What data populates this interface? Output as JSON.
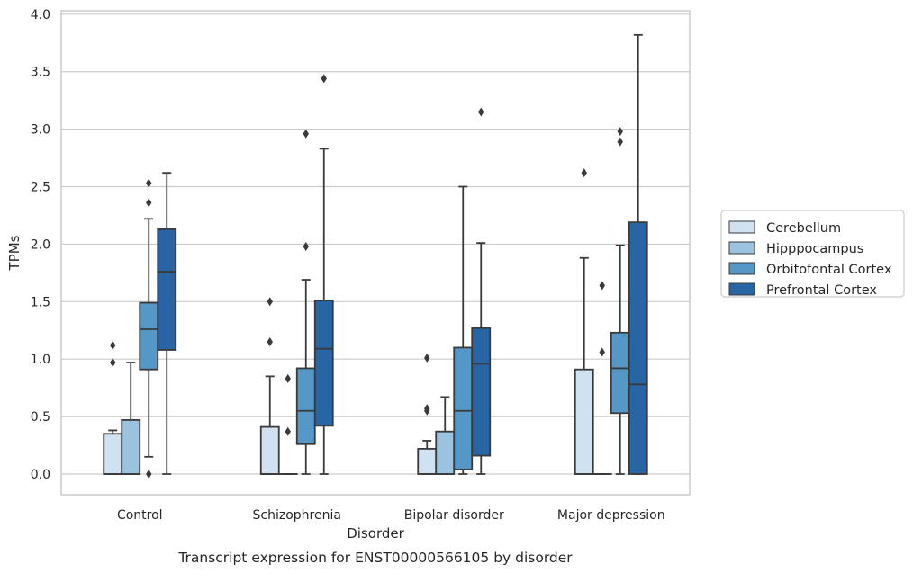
{
  "chart_data": {
    "type": "box",
    "caption": "Transcript expression for ENST00000566105 by disorder",
    "xlabel": "Disorder",
    "ylabel": "TPMs",
    "ylim": [
      -0.18,
      4.03
    ],
    "yticks": [
      "0.0",
      "0.5",
      "1.0",
      "1.5",
      "2.0",
      "2.5",
      "3.0",
      "3.5",
      "4.0"
    ],
    "grid": true,
    "legend_position": "right",
    "categories": [
      "Control",
      "Schizophrenia",
      "Bipolar disorder",
      "Major depression"
    ],
    "series": [
      {
        "name": "Cerebellum",
        "color": "#d0e1f2",
        "boxes": [
          {
            "whislo": 0.0,
            "q1": 0.0,
            "med": 0.0,
            "q3": 0.35,
            "whishi": 0.38,
            "fliers": [
              0.97,
              1.12
            ]
          },
          {
            "whislo": 0.0,
            "q1": 0.0,
            "med": 0.0,
            "q3": 0.41,
            "whishi": 0.85,
            "fliers": [
              1.15,
              1.5
            ]
          },
          {
            "whislo": 0.0,
            "q1": 0.0,
            "med": 0.0,
            "q3": 0.22,
            "whishi": 0.29,
            "fliers": [
              0.55,
              0.57,
              1.01
            ]
          },
          {
            "whislo": 0.0,
            "q1": 0.0,
            "med": 0.0,
            "q3": 0.91,
            "whishi": 1.88,
            "fliers": [
              2.62
            ]
          }
        ]
      },
      {
        "name": "Hipppocampus",
        "color": "#9bc3df",
        "boxes": [
          {
            "whislo": 0.0,
            "q1": 0.0,
            "med": 0.0,
            "q3": 0.47,
            "whishi": 0.97,
            "fliers": []
          },
          {
            "whislo": 0.0,
            "q1": 0.0,
            "med": 0.0,
            "q3": 0.0,
            "whishi": 0.0,
            "fliers": [
              0.37,
              0.83
            ]
          },
          {
            "whislo": 0.0,
            "q1": 0.0,
            "med": 0.0,
            "q3": 0.37,
            "whishi": 0.67,
            "fliers": []
          },
          {
            "whislo": 0.0,
            "q1": 0.0,
            "med": 0.0,
            "q3": 0.0,
            "whishi": 0.0,
            "fliers": [
              1.06,
              1.64
            ]
          }
        ]
      },
      {
        "name": "Orbitofontal Cortex",
        "color": "#5597c6",
        "boxes": [
          {
            "whislo": 0.15,
            "q1": 0.91,
            "med": 1.26,
            "q3": 1.49,
            "whishi": 2.22,
            "fliers": [
              0.0,
              2.36,
              2.53
            ]
          },
          {
            "whislo": 0.0,
            "q1": 0.26,
            "med": 0.55,
            "q3": 0.92,
            "whishi": 1.69,
            "fliers": [
              1.98,
              2.96
            ]
          },
          {
            "whislo": 0.0,
            "q1": 0.04,
            "med": 0.55,
            "q3": 1.1,
            "whishi": 2.5,
            "fliers": []
          },
          {
            "whislo": 0.0,
            "q1": 0.53,
            "med": 0.92,
            "q3": 1.23,
            "whishi": 1.99,
            "fliers": [
              2.89,
              2.98
            ]
          }
        ]
      },
      {
        "name": "Prefrontal Cortex",
        "color": "#2865a5",
        "boxes": [
          {
            "whislo": 0.0,
            "q1": 1.08,
            "med": 1.76,
            "q3": 2.13,
            "whishi": 2.62,
            "fliers": []
          },
          {
            "whislo": 0.0,
            "q1": 0.42,
            "med": 1.09,
            "q3": 1.51,
            "whishi": 2.83,
            "fliers": [
              3.44
            ]
          },
          {
            "whislo": 0.0,
            "q1": 0.16,
            "med": 0.96,
            "q3": 1.27,
            "whishi": 2.01,
            "fliers": [
              3.15
            ]
          },
          {
            "whislo": 0.0,
            "q1": 0.0,
            "med": 0.78,
            "q3": 2.19,
            "whishi": 3.82,
            "fliers": []
          }
        ]
      }
    ]
  }
}
